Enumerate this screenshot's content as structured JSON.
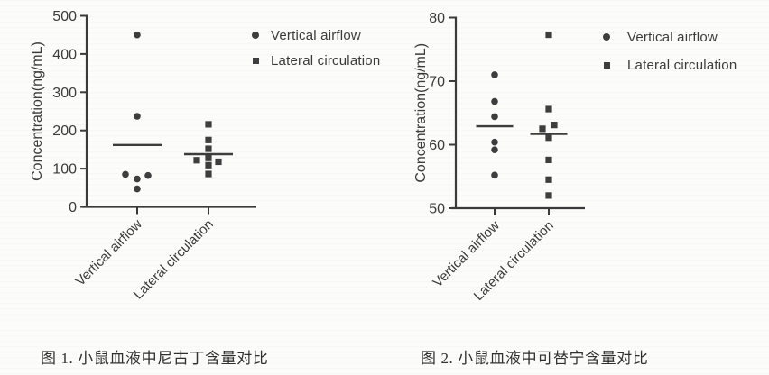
{
  "page": {
    "background": "#fcfcfb",
    "text_color": "#3a3a3a"
  },
  "figures": [
    {
      "caption": "图 1. 小鼠血液中尼古丁含量对比"
    },
    {
      "caption": "图 2. 小鼠血液中可替宁含量对比"
    }
  ],
  "chart_data": [
    {
      "type": "scatter",
      "title": "",
      "xlabel": "",
      "ylabel": "Concentration(ng/mL)",
      "ylim": [
        0,
        500
      ],
      "yticks": [
        0,
        100,
        200,
        300,
        400,
        500
      ],
      "grid": false,
      "categories": [
        "Vertical airflow",
        "Lateral circulation"
      ],
      "legend": {
        "position": "right",
        "entries": [
          {
            "label": "Vertical airflow",
            "marker": "circle"
          },
          {
            "label": "Lateral circulation",
            "marker": "square"
          }
        ]
      },
      "marker_color": "#3d3d3d",
      "axis_color": "#3a3a3a",
      "series": [
        {
          "name": "Vertical airflow",
          "marker": "circle",
          "mean": 162,
          "points": [
            {
              "y": 450,
              "dx": 0
            },
            {
              "y": 237,
              "dx": 0
            },
            {
              "y": 85,
              "dx": -13
            },
            {
              "y": 73,
              "dx": 0
            },
            {
              "y": 82,
              "dx": 12
            },
            {
              "y": 47,
              "dx": 0
            }
          ]
        },
        {
          "name": "Lateral circulation",
          "marker": "square",
          "mean": 138,
          "points": [
            {
              "y": 216,
              "dx": 0
            },
            {
              "y": 175,
              "dx": 0
            },
            {
              "y": 152,
              "dx": 0
            },
            {
              "y": 128,
              "dx": 0
            },
            {
              "y": 122,
              "dx": -13
            },
            {
              "y": 118,
              "dx": 11
            },
            {
              "y": 109,
              "dx": 0
            },
            {
              "y": 86,
              "dx": 0
            }
          ]
        }
      ]
    },
    {
      "type": "scatter",
      "title": "",
      "xlabel": "",
      "ylabel": "Concentration(ng/mL)",
      "ylim": [
        50,
        80
      ],
      "yticks": [
        50,
        60,
        70,
        80
      ],
      "grid": false,
      "categories": [
        "Vertical airflow",
        "Lateral circulation"
      ],
      "legend": {
        "position": "right",
        "entries": [
          {
            "label": "Vertical airflow",
            "marker": "circle"
          },
          {
            "label": "Lateral circulation",
            "marker": "square"
          }
        ]
      },
      "marker_color": "#3d3d3d",
      "axis_color": "#3a3a3a",
      "series": [
        {
          "name": "Vertical airflow",
          "marker": "circle",
          "mean": 62.9,
          "points": [
            {
              "y": 71,
              "dx": 0
            },
            {
              "y": 66.8,
              "dx": 0
            },
            {
              "y": 64.4,
              "dx": 0
            },
            {
              "y": 60.4,
              "dx": 0
            },
            {
              "y": 59.2,
              "dx": 0
            },
            {
              "y": 55.2,
              "dx": 0
            }
          ]
        },
        {
          "name": "Lateral circulation",
          "marker": "square",
          "mean": 61.7,
          "points": [
            {
              "y": 77.3,
              "dx": 0
            },
            {
              "y": 65.6,
              "dx": 0
            },
            {
              "y": 63.1,
              "dx": 6
            },
            {
              "y": 62.5,
              "dx": -7
            },
            {
              "y": 61.1,
              "dx": 0
            },
            {
              "y": 57.6,
              "dx": 0
            },
            {
              "y": 54.5,
              "dx": 0
            },
            {
              "y": 52,
              "dx": 0
            }
          ]
        }
      ]
    }
  ]
}
